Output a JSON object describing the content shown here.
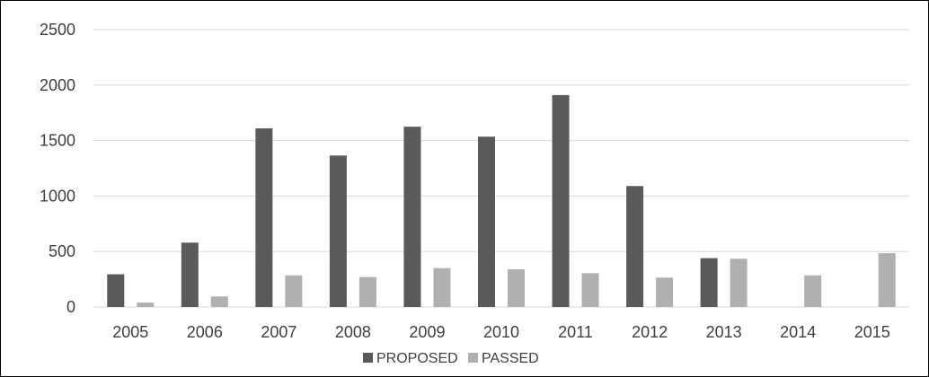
{
  "chart_data": {
    "type": "bar",
    "categories": [
      "2005",
      "2006",
      "2007",
      "2008",
      "2009",
      "2010",
      "2011",
      "2012",
      "2013",
      "2014",
      "2015"
    ],
    "series": [
      {
        "name": "PROPOSED",
        "color": "#5a5a5a",
        "values": [
          295,
          580,
          1610,
          1365,
          1625,
          1535,
          1910,
          1090,
          440,
          0,
          0
        ]
      },
      {
        "name": "PASSED",
        "color": "#b0b0b0",
        "values": [
          40,
          95,
          285,
          270,
          350,
          340,
          305,
          265,
          435,
          285,
          485
        ]
      }
    ],
    "ylim": [
      0,
      2500
    ],
    "yticks": [
      0,
      500,
      1000,
      1500,
      2000,
      2500
    ],
    "grid": true,
    "legend_position": "bottom"
  }
}
